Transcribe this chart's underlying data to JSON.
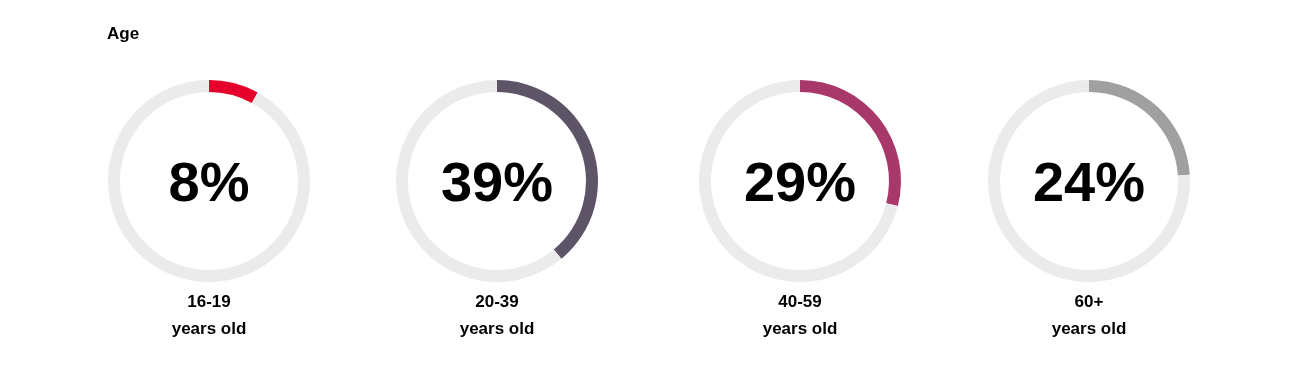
{
  "chart_data": [
    {
      "type": "donut",
      "title": "Age",
      "xlabel": "16-19 years old",
      "annotations": [
        "8%"
      ],
      "categories": [
        null,
        null
      ],
      "values": [
        8,
        92
      ],
      "colors": [
        "#e4002b",
        "#ebebeb"
      ]
    },
    {
      "type": "donut",
      "xlabel": "20-39 years old",
      "annotations": [
        "39%"
      ],
      "categories": [
        null,
        null
      ],
      "values": [
        39,
        61
      ],
      "colors": [
        "#5e5468",
        "#ebebeb"
      ]
    },
    {
      "type": "donut",
      "xlabel": "40-59 years old",
      "annotations": [
        "29%"
      ],
      "categories": [
        null,
        null
      ],
      "values": [
        29,
        71
      ],
      "colors": [
        "#a8386a",
        "#ebebeb"
      ]
    },
    {
      "type": "donut",
      "xlabel": "60+ years old",
      "annotations": [
        "24%"
      ],
      "categories": [
        null,
        null
      ],
      "values": [
        24,
        76
      ],
      "colors": [
        "#a0a0a0",
        "#ebebeb"
      ]
    }
  ]
}
